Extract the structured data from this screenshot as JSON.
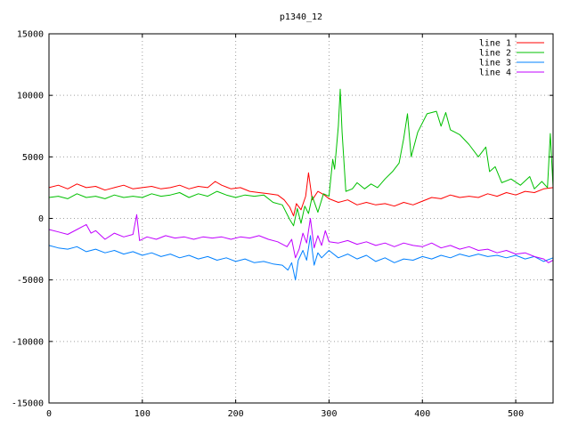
{
  "chart_data": {
    "type": "line",
    "title": "p1340_12",
    "xlabel": "",
    "ylabel": "",
    "xlim": [
      0,
      540
    ],
    "ylim": [
      -15000,
      15000
    ],
    "x_ticks": [
      0,
      100,
      200,
      300,
      400,
      500
    ],
    "y_ticks": [
      -15000,
      -10000,
      -5000,
      0,
      5000,
      10000,
      15000
    ],
    "grid": true,
    "legend": "top-right",
    "series": [
      {
        "name": "line 1",
        "color": "#ff0000",
        "points": [
          [
            0,
            2500
          ],
          [
            10,
            2700
          ],
          [
            20,
            2400
          ],
          [
            30,
            2800
          ],
          [
            40,
            2500
          ],
          [
            50,
            2600
          ],
          [
            60,
            2300
          ],
          [
            70,
            2500
          ],
          [
            80,
            2700
          ],
          [
            90,
            2400
          ],
          [
            100,
            2500
          ],
          [
            110,
            2600
          ],
          [
            120,
            2400
          ],
          [
            130,
            2500
          ],
          [
            140,
            2700
          ],
          [
            150,
            2400
          ],
          [
            160,
            2600
          ],
          [
            170,
            2500
          ],
          [
            178,
            3000
          ],
          [
            185,
            2700
          ],
          [
            195,
            2400
          ],
          [
            205,
            2500
          ],
          [
            215,
            2200
          ],
          [
            225,
            2100
          ],
          [
            235,
            2000
          ],
          [
            245,
            1900
          ],
          [
            252,
            1500
          ],
          [
            258,
            900
          ],
          [
            262,
            200
          ],
          [
            265,
            1200
          ],
          [
            270,
            700
          ],
          [
            275,
            1800
          ],
          [
            278,
            3700
          ],
          [
            282,
            1500
          ],
          [
            288,
            2200
          ],
          [
            295,
            1900
          ],
          [
            300,
            1600
          ],
          [
            310,
            1300
          ],
          [
            320,
            1500
          ],
          [
            330,
            1100
          ],
          [
            340,
            1300
          ],
          [
            350,
            1100
          ],
          [
            360,
            1200
          ],
          [
            370,
            1000
          ],
          [
            380,
            1300
          ],
          [
            390,
            1100
          ],
          [
            400,
            1400
          ],
          [
            410,
            1700
          ],
          [
            420,
            1600
          ],
          [
            430,
            1900
          ],
          [
            440,
            1700
          ],
          [
            450,
            1800
          ],
          [
            460,
            1700
          ],
          [
            470,
            2000
          ],
          [
            480,
            1800
          ],
          [
            490,
            2100
          ],
          [
            500,
            1900
          ],
          [
            510,
            2200
          ],
          [
            520,
            2100
          ],
          [
            530,
            2400
          ],
          [
            540,
            2500
          ]
        ]
      },
      {
        "name": "line 2",
        "color": "#00c000",
        "points": [
          [
            0,
            1700
          ],
          [
            10,
            1800
          ],
          [
            20,
            1600
          ],
          [
            30,
            2000
          ],
          [
            40,
            1700
          ],
          [
            50,
            1800
          ],
          [
            60,
            1600
          ],
          [
            70,
            1900
          ],
          [
            80,
            1700
          ],
          [
            90,
            1800
          ],
          [
            100,
            1700
          ],
          [
            110,
            2000
          ],
          [
            120,
            1800
          ],
          [
            130,
            1900
          ],
          [
            140,
            2100
          ],
          [
            150,
            1700
          ],
          [
            160,
            2000
          ],
          [
            170,
            1800
          ],
          [
            180,
            2200
          ],
          [
            190,
            1900
          ],
          [
            200,
            1700
          ],
          [
            210,
            1900
          ],
          [
            220,
            1800
          ],
          [
            230,
            1900
          ],
          [
            240,
            1300
          ],
          [
            250,
            1100
          ],
          [
            258,
            -100
          ],
          [
            262,
            -600
          ],
          [
            266,
            800
          ],
          [
            270,
            -400
          ],
          [
            274,
            1000
          ],
          [
            278,
            400
          ],
          [
            282,
            1800
          ],
          [
            288,
            500
          ],
          [
            294,
            2000
          ],
          [
            300,
            1800
          ],
          [
            304,
            4800
          ],
          [
            306,
            4000
          ],
          [
            310,
            7500
          ],
          [
            312,
            10500
          ],
          [
            314,
            7000
          ],
          [
            318,
            2200
          ],
          [
            325,
            2400
          ],
          [
            330,
            2900
          ],
          [
            338,
            2400
          ],
          [
            345,
            2800
          ],
          [
            352,
            2500
          ],
          [
            360,
            3200
          ],
          [
            368,
            3800
          ],
          [
            375,
            4500
          ],
          [
            380,
            6500
          ],
          [
            384,
            8500
          ],
          [
            388,
            5000
          ],
          [
            395,
            7000
          ],
          [
            405,
            8500
          ],
          [
            415,
            8700
          ],
          [
            420,
            7500
          ],
          [
            425,
            8600
          ],
          [
            430,
            7200
          ],
          [
            440,
            6800
          ],
          [
            450,
            6000
          ],
          [
            460,
            5000
          ],
          [
            468,
            5800
          ],
          [
            472,
            3800
          ],
          [
            478,
            4200
          ],
          [
            485,
            2900
          ],
          [
            495,
            3200
          ],
          [
            505,
            2700
          ],
          [
            515,
            3400
          ],
          [
            520,
            2400
          ],
          [
            528,
            3000
          ],
          [
            534,
            2500
          ],
          [
            537,
            6900
          ],
          [
            540,
            2500
          ]
        ]
      },
      {
        "name": "line 3",
        "color": "#0080ff",
        "points": [
          [
            0,
            -2200
          ],
          [
            10,
            -2400
          ],
          [
            20,
            -2500
          ],
          [
            30,
            -2300
          ],
          [
            40,
            -2700
          ],
          [
            50,
            -2500
          ],
          [
            60,
            -2800
          ],
          [
            70,
            -2600
          ],
          [
            80,
            -2900
          ],
          [
            90,
            -2700
          ],
          [
            100,
            -3000
          ],
          [
            110,
            -2800
          ],
          [
            120,
            -3100
          ],
          [
            130,
            -2900
          ],
          [
            140,
            -3200
          ],
          [
            150,
            -3000
          ],
          [
            160,
            -3300
          ],
          [
            170,
            -3100
          ],
          [
            180,
            -3400
          ],
          [
            190,
            -3200
          ],
          [
            200,
            -3500
          ],
          [
            210,
            -3300
          ],
          [
            220,
            -3600
          ],
          [
            230,
            -3500
          ],
          [
            240,
            -3700
          ],
          [
            250,
            -3800
          ],
          [
            256,
            -4200
          ],
          [
            260,
            -3600
          ],
          [
            264,
            -5000
          ],
          [
            267,
            -3400
          ],
          [
            272,
            -2600
          ],
          [
            276,
            -3400
          ],
          [
            280,
            -1400
          ],
          [
            284,
            -3800
          ],
          [
            288,
            -2800
          ],
          [
            292,
            -3200
          ],
          [
            300,
            -2600
          ],
          [
            310,
            -3200
          ],
          [
            320,
            -2900
          ],
          [
            330,
            -3300
          ],
          [
            340,
            -3000
          ],
          [
            350,
            -3500
          ],
          [
            360,
            -3200
          ],
          [
            370,
            -3600
          ],
          [
            380,
            -3300
          ],
          [
            390,
            -3400
          ],
          [
            400,
            -3100
          ],
          [
            410,
            -3300
          ],
          [
            420,
            -3000
          ],
          [
            430,
            -3200
          ],
          [
            440,
            -2900
          ],
          [
            450,
            -3100
          ],
          [
            460,
            -2900
          ],
          [
            470,
            -3100
          ],
          [
            480,
            -3000
          ],
          [
            490,
            -3200
          ],
          [
            500,
            -3000
          ],
          [
            510,
            -3300
          ],
          [
            520,
            -3100
          ],
          [
            530,
            -3500
          ],
          [
            540,
            -3200
          ]
        ]
      },
      {
        "name": "line 4",
        "color": "#c000ff",
        "points": [
          [
            0,
            -900
          ],
          [
            10,
            -1100
          ],
          [
            20,
            -1300
          ],
          [
            30,
            -900
          ],
          [
            40,
            -500
          ],
          [
            45,
            -1200
          ],
          [
            50,
            -1000
          ],
          [
            60,
            -1700
          ],
          [
            70,
            -1200
          ],
          [
            80,
            -1500
          ],
          [
            90,
            -1300
          ],
          [
            94,
            300
          ],
          [
            97,
            -1800
          ],
          [
            105,
            -1500
          ],
          [
            115,
            -1700
          ],
          [
            125,
            -1400
          ],
          [
            135,
            -1600
          ],
          [
            145,
            -1500
          ],
          [
            155,
            -1700
          ],
          [
            165,
            -1500
          ],
          [
            175,
            -1600
          ],
          [
            185,
            -1500
          ],
          [
            195,
            -1700
          ],
          [
            205,
            -1500
          ],
          [
            215,
            -1600
          ],
          [
            225,
            -1400
          ],
          [
            235,
            -1700
          ],
          [
            245,
            -1900
          ],
          [
            255,
            -2300
          ],
          [
            260,
            -1700
          ],
          [
            264,
            -3200
          ],
          [
            268,
            -2500
          ],
          [
            272,
            -1200
          ],
          [
            276,
            -2000
          ],
          [
            280,
            0
          ],
          [
            284,
            -2400
          ],
          [
            288,
            -1400
          ],
          [
            292,
            -2200
          ],
          [
            296,
            -1000
          ],
          [
            300,
            -1900
          ],
          [
            310,
            -2000
          ],
          [
            320,
            -1800
          ],
          [
            330,
            -2100
          ],
          [
            340,
            -1900
          ],
          [
            350,
            -2200
          ],
          [
            360,
            -2000
          ],
          [
            370,
            -2300
          ],
          [
            380,
            -2000
          ],
          [
            390,
            -2200
          ],
          [
            400,
            -2300
          ],
          [
            410,
            -2000
          ],
          [
            420,
            -2400
          ],
          [
            430,
            -2200
          ],
          [
            440,
            -2500
          ],
          [
            450,
            -2300
          ],
          [
            460,
            -2600
          ],
          [
            470,
            -2500
          ],
          [
            480,
            -2800
          ],
          [
            490,
            -2600
          ],
          [
            500,
            -2900
          ],
          [
            510,
            -2800
          ],
          [
            520,
            -3100
          ],
          [
            530,
            -3300
          ],
          [
            535,
            -3600
          ],
          [
            540,
            -3400
          ]
        ]
      }
    ]
  }
}
